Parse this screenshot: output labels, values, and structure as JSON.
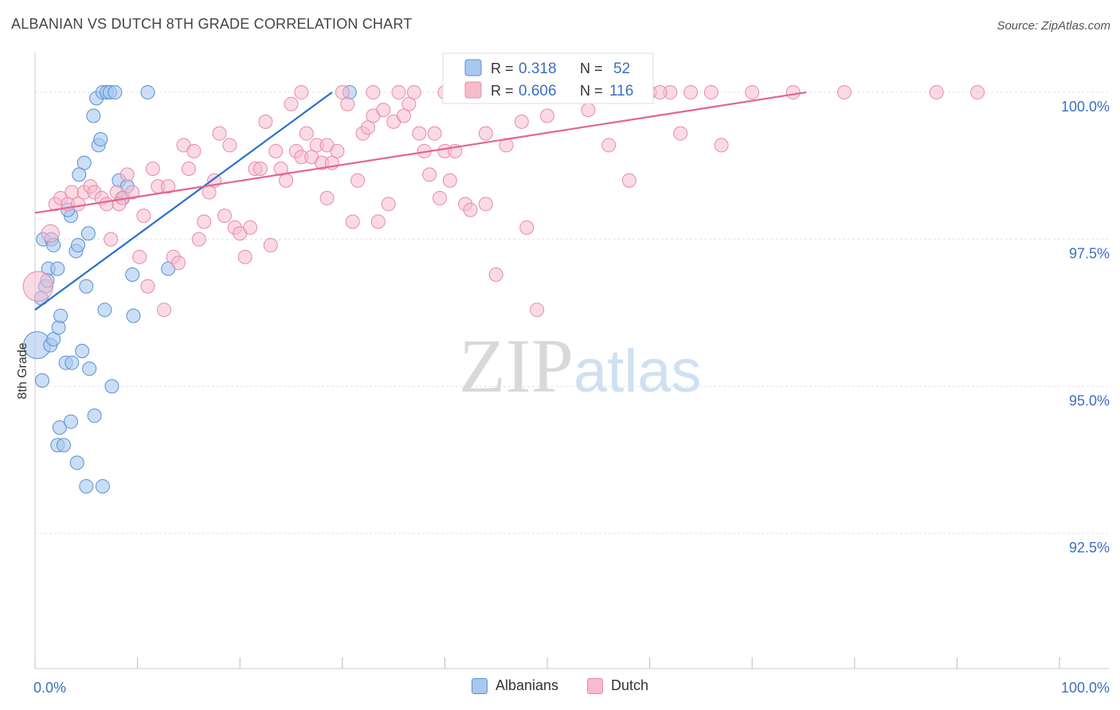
{
  "header": {
    "title": "ALBANIAN VS DUTCH 8TH GRADE CORRELATION CHART",
    "source": "Source: ZipAtlas.com"
  },
  "watermark": {
    "zip": "ZIP",
    "atlas": "atlas"
  },
  "colors": {
    "albanians_fill": "#a9c8ef",
    "albanians_stroke": "#5b8fd6",
    "albanians_line": "#2a6fcf",
    "dutch_fill": "#f6bccd",
    "dutch_stroke": "#e88aa7",
    "dutch_line": "#e3658c",
    "value_text": "#3b6fc4"
  },
  "legend_box": {
    "rows": [
      {
        "r_label": "R =",
        "r_value": "0.318",
        "n_label": "N =",
        "n_value": "52"
      },
      {
        "r_label": "R =",
        "r_value": "0.606",
        "n_label": "N =",
        "n_value": "116"
      }
    ]
  },
  "bottom_legend": {
    "albanians": "Albanians",
    "dutch": "Dutch"
  },
  "chart_data": {
    "type": "scatter",
    "title": "ALBANIAN VS DUTCH 8TH GRADE CORRELATION CHART",
    "xlabel": "",
    "ylabel": "8th Grade",
    "xlim": [
      0,
      100
    ],
    "ylim": [
      90.2,
      100.5
    ],
    "x_tick_labels": [
      "0.0%",
      "100.0%"
    ],
    "y_ticks": [
      100.0,
      97.5,
      95.0,
      92.5
    ],
    "y_tick_labels": [
      "100.0%",
      "97.5%",
      "95.0%",
      "92.5%"
    ],
    "grid": true,
    "series": [
      {
        "name": "Albanians",
        "R": 0.318,
        "N": 52,
        "trend": {
          "x": [
            0,
            29
          ],
          "y": [
            96.3,
            100.0
          ]
        },
        "points": [
          [
            0.2,
            95.7,
            2
          ],
          [
            0.8,
            97.5,
            1
          ],
          [
            1.0,
            96.7,
            1
          ],
          [
            0.6,
            96.5,
            1
          ],
          [
            0.7,
            95.1,
            1
          ],
          [
            1.5,
            95.7,
            1
          ],
          [
            1.8,
            95.8,
            1
          ],
          [
            2.3,
            96.0,
            1
          ],
          [
            2.5,
            96.2,
            1
          ],
          [
            1.3,
            97.0,
            1
          ],
          [
            1.6,
            97.5,
            1
          ],
          [
            1.8,
            97.4,
            1
          ],
          [
            2.2,
            97.0,
            1
          ],
          [
            3.0,
            95.4,
            1
          ],
          [
            3.6,
            95.4,
            1
          ],
          [
            4.0,
            97.3,
            1
          ],
          [
            4.2,
            97.4,
            1
          ],
          [
            3.5,
            97.9,
            1
          ],
          [
            3.2,
            98.0,
            1
          ],
          [
            4.8,
            98.8,
            1
          ],
          [
            4.3,
            98.6,
            1
          ],
          [
            5.7,
            99.6,
            1
          ],
          [
            6.0,
            99.9,
            1
          ],
          [
            6.2,
            99.1,
            1
          ],
          [
            6.4,
            99.2,
            1
          ],
          [
            6.6,
            100.0,
            1
          ],
          [
            7.0,
            100.0,
            1
          ],
          [
            7.3,
            100.0,
            1
          ],
          [
            7.8,
            100.0,
            1
          ],
          [
            8.2,
            98.5,
            1
          ],
          [
            8.5,
            98.2,
            1
          ],
          [
            9.0,
            98.4,
            1
          ],
          [
            11.0,
            100.0,
            1
          ],
          [
            13.0,
            97.0,
            1
          ],
          [
            5.0,
            96.7,
            1
          ],
          [
            5.2,
            97.6,
            1
          ],
          [
            6.8,
            96.3,
            1
          ],
          [
            9.5,
            96.9,
            1
          ],
          [
            9.6,
            96.2,
            1
          ],
          [
            4.6,
            95.6,
            1
          ],
          [
            5.3,
            95.3,
            1
          ],
          [
            7.5,
            95.0,
            1
          ],
          [
            2.4,
            94.3,
            1
          ],
          [
            2.2,
            94.0,
            1
          ],
          [
            2.8,
            94.0,
            1
          ],
          [
            3.5,
            94.4,
            1
          ],
          [
            4.1,
            93.7,
            1
          ],
          [
            5.8,
            94.5,
            1
          ],
          [
            5.0,
            93.3,
            1
          ],
          [
            6.6,
            93.3,
            1
          ],
          [
            30.7,
            100.0,
            1
          ],
          [
            1.2,
            96.8,
            1
          ]
        ]
      },
      {
        "name": "Dutch",
        "R": 0.606,
        "N": 116,
        "trend": {
          "x": [
            0,
            75.3
          ],
          "y": [
            97.95,
            100.0
          ]
        },
        "points": [
          [
            0.3,
            96.7,
            2.2
          ],
          [
            1.5,
            97.6,
            1.3
          ],
          [
            2.0,
            98.1,
            1
          ],
          [
            2.5,
            98.2,
            1
          ],
          [
            3.2,
            98.1,
            1
          ],
          [
            3.6,
            98.3,
            1
          ],
          [
            4.2,
            98.1,
            1
          ],
          [
            4.8,
            98.3,
            1
          ],
          [
            5.4,
            98.4,
            1
          ],
          [
            5.8,
            98.3,
            1
          ],
          [
            6.5,
            98.2,
            1
          ],
          [
            7.0,
            98.1,
            1
          ],
          [
            7.4,
            97.5,
            1
          ],
          [
            8.0,
            98.3,
            1
          ],
          [
            8.6,
            98.2,
            1
          ],
          [
            9.0,
            98.6,
            1
          ],
          [
            9.5,
            98.3,
            1
          ],
          [
            10.2,
            97.2,
            1
          ],
          [
            10.6,
            97.9,
            1
          ],
          [
            11.0,
            96.7,
            1
          ],
          [
            11.5,
            98.7,
            1
          ],
          [
            12.0,
            98.4,
            1
          ],
          [
            12.6,
            96.3,
            1
          ],
          [
            13.0,
            98.4,
            1
          ],
          [
            13.5,
            97.2,
            1
          ],
          [
            14.0,
            97.1,
            1
          ],
          [
            14.5,
            99.1,
            1
          ],
          [
            15.0,
            98.7,
            1
          ],
          [
            15.5,
            99.0,
            1
          ],
          [
            16.0,
            97.5,
            1
          ],
          [
            16.5,
            97.8,
            1
          ],
          [
            17.0,
            98.3,
            1
          ],
          [
            17.5,
            98.5,
            1
          ],
          [
            18.0,
            99.3,
            1
          ],
          [
            18.5,
            97.9,
            1
          ],
          [
            19.0,
            99.1,
            1
          ],
          [
            19.5,
            97.7,
            1
          ],
          [
            20.0,
            97.6,
            1
          ],
          [
            20.5,
            97.2,
            1
          ],
          [
            21.0,
            97.7,
            1
          ],
          [
            21.5,
            98.7,
            1
          ],
          [
            22.0,
            98.7,
            1
          ],
          [
            22.5,
            99.5,
            1
          ],
          [
            23.0,
            97.4,
            1
          ],
          [
            23.5,
            99.0,
            1
          ],
          [
            24.0,
            98.7,
            1
          ],
          [
            24.5,
            98.5,
            1
          ],
          [
            25.0,
            99.8,
            1
          ],
          [
            25.5,
            99.0,
            1
          ],
          [
            26.0,
            98.9,
            1
          ],
          [
            26.5,
            99.3,
            1
          ],
          [
            27.0,
            98.9,
            1
          ],
          [
            27.5,
            99.1,
            1
          ],
          [
            28.0,
            98.8,
            1
          ],
          [
            28.5,
            99.1,
            1
          ],
          [
            28.5,
            98.2,
            1
          ],
          [
            29.0,
            98.8,
            1
          ],
          [
            29.5,
            99.0,
            1
          ],
          [
            30.0,
            100.0,
            1
          ],
          [
            30.5,
            99.8,
            1
          ],
          [
            31.0,
            97.8,
            1
          ],
          [
            31.5,
            98.5,
            1
          ],
          [
            32.0,
            99.3,
            1
          ],
          [
            32.5,
            99.4,
            1
          ],
          [
            33.0,
            99.6,
            1
          ],
          [
            33.5,
            97.8,
            1
          ],
          [
            34.0,
            99.7,
            1
          ],
          [
            34.5,
            98.1,
            1
          ],
          [
            35.0,
            99.5,
            1
          ],
          [
            35.5,
            100.0,
            1
          ],
          [
            36.0,
            99.6,
            1
          ],
          [
            36.5,
            99.8,
            1
          ],
          [
            37.0,
            100.0,
            1
          ],
          [
            37.5,
            99.3,
            1
          ],
          [
            38.0,
            99.0,
            1
          ],
          [
            38.5,
            98.6,
            1
          ],
          [
            39.0,
            99.3,
            1
          ],
          [
            39.5,
            98.2,
            1
          ],
          [
            40.0,
            99.0,
            1
          ],
          [
            40.5,
            98.5,
            1
          ],
          [
            41.0,
            99.0,
            1
          ],
          [
            42.0,
            98.1,
            1
          ],
          [
            42.5,
            98.0,
            1
          ],
          [
            43.0,
            100.0,
            1
          ],
          [
            44.0,
            98.1,
            1
          ],
          [
            45.0,
            96.9,
            1
          ],
          [
            46.0,
            99.1,
            1
          ],
          [
            48.0,
            97.7,
            1
          ],
          [
            50.0,
            99.6,
            1
          ],
          [
            52.0,
            100.0,
            1
          ],
          [
            54.0,
            99.7,
            1
          ],
          [
            56.0,
            99.1,
            1
          ],
          [
            58.0,
            98.5,
            1
          ],
          [
            60.0,
            100.0,
            1
          ],
          [
            62.0,
            100.0,
            1
          ],
          [
            63.0,
            99.3,
            1
          ],
          [
            66.0,
            100.0,
            1
          ],
          [
            70.0,
            100.0,
            1
          ],
          [
            74.0,
            100.0,
            1
          ],
          [
            79.0,
            100.0,
            1
          ],
          [
            88.0,
            100.0,
            1
          ],
          [
            92.0,
            100.0,
            1
          ],
          [
            49.0,
            96.3,
            1
          ],
          [
            44.0,
            99.3,
            1
          ],
          [
            47.5,
            99.5,
            1
          ],
          [
            51.5,
            100.0,
            1
          ],
          [
            55.0,
            100.0,
            1
          ],
          [
            57.0,
            100.0,
            1
          ],
          [
            59.0,
            100.0,
            1
          ],
          [
            61.0,
            100.0,
            1
          ],
          [
            64.0,
            100.0,
            1
          ],
          [
            67.0,
            99.1,
            1
          ],
          [
            26.0,
            100.0,
            1
          ],
          [
            33.0,
            100.0,
            1
          ],
          [
            40.0,
            100.0,
            1
          ],
          [
            8.2,
            98.1,
            1
          ]
        ]
      }
    ]
  }
}
